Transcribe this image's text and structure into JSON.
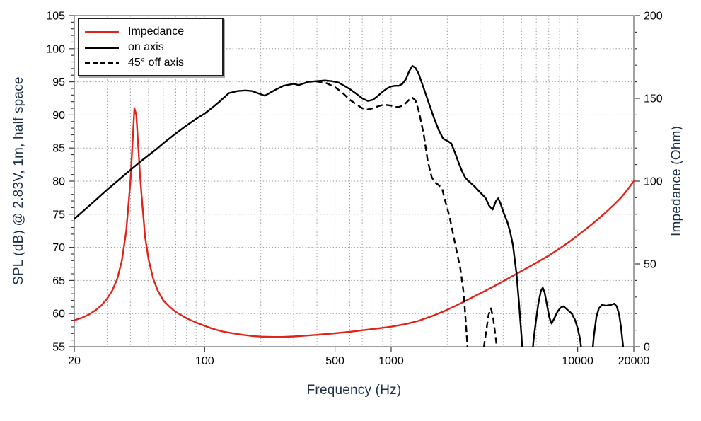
{
  "legend": {
    "items": [
      {
        "label": "Impedance",
        "color": "#e2231a",
        "style": "solid"
      },
      {
        "label": "on axis",
        "color": "#000000",
        "style": "solid"
      },
      {
        "label": "45° off axis",
        "color": "#000000",
        "style": "dashed"
      }
    ]
  },
  "chart_data": {
    "type": "line",
    "title": "",
    "colors": {
      "impedance": "#e2231a",
      "spl": "#000000",
      "axis_title_text": "#1b3049"
    },
    "x_axis": {
      "label": "Frequency (Hz)",
      "scale": "log",
      "min": 20,
      "max": 20000,
      "ticks": [
        {
          "value": 20,
          "label": "20"
        },
        {
          "value": 100,
          "label": "100"
        },
        {
          "value": 500,
          "label": "500"
        },
        {
          "value": 1000,
          "label": "1000"
        },
        {
          "value": 10000,
          "label": "10000"
        },
        {
          "value": 20000,
          "label": "20000"
        }
      ]
    },
    "y_left": {
      "label": "SPL (dB) @ 2.83V, 1m, half space",
      "min": 55,
      "max": 105,
      "major_step": 5,
      "minor_step": 1,
      "tick_labels": [
        "55",
        "60",
        "65",
        "70",
        "75",
        "80",
        "85",
        "90",
        "95",
        "100",
        "105"
      ]
    },
    "y_right": {
      "label": "Impedance (Ohm)",
      "min": 0,
      "max": 200,
      "major_step": 50,
      "minor_step": 10,
      "tick_labels": [
        "0",
        "50",
        "100",
        "150",
        "200"
      ]
    },
    "grid": {
      "horizontal_every_db": 5,
      "vertical": "log-minor",
      "style": "dotted"
    },
    "series": [
      {
        "name": "Impedance",
        "axis": "right",
        "color": "#e2231a",
        "dash": "solid",
        "points": [
          [
            20,
            16
          ],
          [
            22,
            17.5
          ],
          [
            24,
            19.5
          ],
          [
            26,
            22
          ],
          [
            28,
            25
          ],
          [
            30,
            29
          ],
          [
            32,
            34
          ],
          [
            34,
            41
          ],
          [
            36,
            52
          ],
          [
            38,
            70
          ],
          [
            40,
            100
          ],
          [
            41,
            122
          ],
          [
            42,
            144
          ],
          [
            43,
            140
          ],
          [
            44,
            122
          ],
          [
            45,
            104
          ],
          [
            46,
            90
          ],
          [
            48,
            66
          ],
          [
            50,
            53
          ],
          [
            53,
            41
          ],
          [
            56,
            34
          ],
          [
            60,
            28
          ],
          [
            65,
            24
          ],
          [
            70,
            21
          ],
          [
            80,
            17.2
          ],
          [
            90,
            14.6
          ],
          [
            100,
            12.6
          ],
          [
            110,
            10.9
          ],
          [
            125,
            9.2
          ],
          [
            140,
            8.2
          ],
          [
            160,
            7.2
          ],
          [
            180,
            6.5
          ],
          [
            200,
            6.1
          ],
          [
            230,
            5.9
          ],
          [
            260,
            5.9
          ],
          [
            300,
            6.2
          ],
          [
            350,
            6.7
          ],
          [
            400,
            7.2
          ],
          [
            450,
            7.7
          ],
          [
            500,
            8.1
          ],
          [
            600,
            9.0
          ],
          [
            700,
            9.9
          ],
          [
            800,
            10.7
          ],
          [
            900,
            11.4
          ],
          [
            1000,
            12.1
          ],
          [
            1200,
            13.7
          ],
          [
            1400,
            15.6
          ],
          [
            1650,
            18.4
          ],
          [
            1900,
            21.2
          ],
          [
            2200,
            24.5
          ],
          [
            2500,
            27.6
          ],
          [
            2800,
            30.5
          ],
          [
            3200,
            33.8
          ],
          [
            3600,
            36.8
          ],
          [
            4000,
            39.6
          ],
          [
            4500,
            42.8
          ],
          [
            5000,
            45.7
          ],
          [
            5500,
            48.3
          ],
          [
            6000,
            50.7
          ],
          [
            7000,
            55.0
          ],
          [
            8000,
            59.3
          ],
          [
            9000,
            63.3
          ],
          [
            10000,
            67.2
          ],
          [
            11000,
            70.8
          ],
          [
            12000,
            74.2
          ],
          [
            13000,
            77.5
          ],
          [
            14000,
            80.7
          ],
          [
            15000,
            83.8
          ],
          [
            16000,
            86.8
          ],
          [
            17000,
            89.8
          ],
          [
            18000,
            93.1
          ],
          [
            19000,
            96.6
          ],
          [
            20000,
            100
          ]
        ]
      },
      {
        "name": "on axis",
        "axis": "left",
        "color": "#000000",
        "dash": "solid",
        "points": [
          [
            20,
            74.3
          ],
          [
            25,
            76.7
          ],
          [
            30,
            78.7
          ],
          [
            35,
            80.3
          ],
          [
            40,
            81.7
          ],
          [
            45,
            82.9
          ],
          [
            50,
            83.9
          ],
          [
            55,
            84.8
          ],
          [
            60,
            85.7
          ],
          [
            70,
            87.2
          ],
          [
            80,
            88.4
          ],
          [
            90,
            89.4
          ],
          [
            100,
            90.2
          ],
          [
            110,
            91.1
          ],
          [
            120,
            92.0
          ],
          [
            135,
            93.3
          ],
          [
            150,
            93.6
          ],
          [
            165,
            93.7
          ],
          [
            180,
            93.6
          ],
          [
            210,
            92.9
          ],
          [
            240,
            93.8
          ],
          [
            265,
            94.4
          ],
          [
            300,
            94.7
          ],
          [
            320,
            94.5
          ],
          [
            360,
            95.0
          ],
          [
            400,
            95.1
          ],
          [
            440,
            95.2
          ],
          [
            480,
            95.1
          ],
          [
            520,
            94.9
          ],
          [
            560,
            94.4
          ],
          [
            600,
            93.9
          ],
          [
            650,
            93.2
          ],
          [
            700,
            92.5
          ],
          [
            750,
            92.1
          ],
          [
            800,
            92.3
          ],
          [
            850,
            92.9
          ],
          [
            900,
            93.5
          ],
          [
            950,
            94.0
          ],
          [
            1000,
            94.3
          ],
          [
            1050,
            94.4
          ],
          [
            1100,
            94.4
          ],
          [
            1150,
            94.7
          ],
          [
            1200,
            95.4
          ],
          [
            1250,
            96.6
          ],
          [
            1300,
            97.4
          ],
          [
            1350,
            97.1
          ],
          [
            1400,
            96.3
          ],
          [
            1450,
            95.1
          ],
          [
            1500,
            93.9
          ],
          [
            1600,
            91.6
          ],
          [
            1700,
            89.5
          ],
          [
            1800,
            87.7
          ],
          [
            1900,
            86.4
          ],
          [
            2000,
            86.1
          ],
          [
            2100,
            85.7
          ],
          [
            2200,
            84.3
          ],
          [
            2300,
            82.8
          ],
          [
            2400,
            81.5
          ],
          [
            2500,
            80.5
          ],
          [
            2650,
            79.8
          ],
          [
            2800,
            79.2
          ],
          [
            3000,
            78.3
          ],
          [
            3200,
            77.5
          ],
          [
            3350,
            76.3
          ],
          [
            3500,
            75.7
          ],
          [
            3650,
            77.0
          ],
          [
            3750,
            77.4
          ],
          [
            3850,
            76.7
          ],
          [
            4000,
            75.3
          ],
          [
            4200,
            73.8
          ],
          [
            4350,
            72.3
          ],
          [
            4500,
            70.3
          ],
          [
            4700,
            66.0
          ],
          [
            4850,
            61.5
          ],
          [
            5000,
            56.5
          ],
          [
            5100,
            52.5
          ],
          [
            5400,
            50
          ],
          [
            5650,
            52.5
          ],
          [
            5800,
            56.0
          ],
          [
            5950,
            58.5
          ],
          [
            6150,
            61.5
          ],
          [
            6350,
            63.4
          ],
          [
            6500,
            63.9
          ],
          [
            6650,
            63.2
          ],
          [
            6850,
            61.3
          ],
          [
            7050,
            59.4
          ],
          [
            7250,
            58.5
          ],
          [
            7500,
            59.3
          ],
          [
            7800,
            60.3
          ],
          [
            8100,
            60.9
          ],
          [
            8400,
            61.1
          ],
          [
            8800,
            60.6
          ],
          [
            9300,
            60.0
          ],
          [
            9700,
            59.0
          ],
          [
            10000,
            57.8
          ],
          [
            10300,
            56.2
          ],
          [
            10600,
            53.5
          ],
          [
            10900,
            50
          ],
          [
            11600,
            50
          ],
          [
            11900,
            53
          ],
          [
            12200,
            56.5
          ],
          [
            12600,
            59.5
          ],
          [
            13000,
            60.8
          ],
          [
            13500,
            61.3
          ],
          [
            14200,
            61.2
          ],
          [
            15000,
            61.3
          ],
          [
            15700,
            61.5
          ],
          [
            16200,
            61.1
          ],
          [
            16700,
            59.8
          ],
          [
            17100,
            57.8
          ],
          [
            17500,
            55.2
          ],
          [
            17800,
            52
          ]
        ]
      },
      {
        "name": "45° off axis",
        "axis": "left",
        "color": "#000000",
        "dash": "dashed",
        "points": [
          [
            350,
            95.0
          ],
          [
            400,
            95.05
          ],
          [
            450,
            94.8
          ],
          [
            500,
            94.2
          ],
          [
            550,
            93.3
          ],
          [
            600,
            92.3
          ],
          [
            650,
            91.6
          ],
          [
            700,
            91.0
          ],
          [
            740,
            90.8
          ],
          [
            800,
            91.0
          ],
          [
            850,
            91.3
          ],
          [
            900,
            91.5
          ],
          [
            950,
            91.5
          ],
          [
            1000,
            91.4
          ],
          [
            1050,
            91.2
          ],
          [
            1100,
            91.2
          ],
          [
            1150,
            91.4
          ],
          [
            1200,
            91.8
          ],
          [
            1250,
            92.3
          ],
          [
            1300,
            92.6
          ],
          [
            1350,
            92.2
          ],
          [
            1400,
            90.8
          ],
          [
            1450,
            88.9
          ],
          [
            1500,
            86.8
          ],
          [
            1570,
            83.1
          ],
          [
            1650,
            80.6
          ],
          [
            1720,
            79.8
          ],
          [
            1800,
            79.4
          ],
          [
            1880,
            78.8
          ],
          [
            1950,
            77.0
          ],
          [
            2050,
            74.8
          ],
          [
            2150,
            72.0
          ],
          [
            2250,
            69.3
          ],
          [
            2350,
            66.8
          ],
          [
            2450,
            63.0
          ],
          [
            2530,
            57.5
          ],
          [
            2600,
            52.5
          ],
          [
            2800,
            50
          ],
          [
            3050,
            52.5
          ],
          [
            3200,
            56.5
          ],
          [
            3330,
            59.8
          ],
          [
            3430,
            60.8
          ],
          [
            3520,
            59.4
          ],
          [
            3650,
            56.0
          ],
          [
            3760,
            52.5
          ]
        ]
      }
    ]
  }
}
